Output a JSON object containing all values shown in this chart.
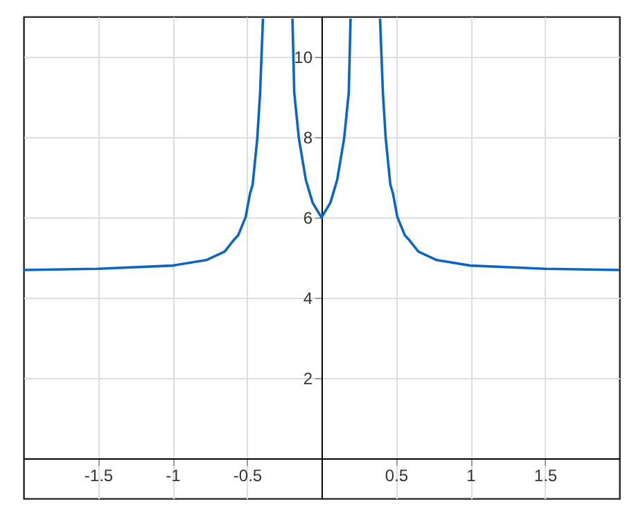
{
  "chart_data": {
    "type": "line",
    "x": [
      -2,
      -1.5,
      -1,
      -0.77,
      -0.65,
      -0.586,
      -0.56,
      -0.509,
      -0.48,
      -0.462,
      -0.431,
      -0.412,
      -0.393,
      -0.3,
      -0.195,
      -0.183,
      -0.152,
      -0.105,
      -0.059,
      0,
      0.059,
      0.105,
      0.152,
      0.183,
      0.195,
      0.3,
      0.393,
      0.412,
      0.431,
      0.462,
      0.48,
      0.509,
      0.56,
      0.586,
      0.65,
      0.77,
      1,
      1.5,
      2
    ],
    "series": [
      {
        "color": "#0a66c2",
        "values": [
          4.69,
          4.72,
          4.8,
          4.94,
          5.15,
          5.45,
          5.55,
          6.01,
          6.59,
          6.82,
          7.97,
          9.11,
          10.95,
          null,
          10.95,
          9.11,
          7.97,
          6.93,
          6.36,
          6.0,
          6.36,
          6.93,
          7.97,
          9.11,
          10.95,
          null,
          10.95,
          9.11,
          7.97,
          6.82,
          6.59,
          6.01,
          5.55,
          5.45,
          5.15,
          4.94,
          4.8,
          4.72,
          4.69
        ]
      }
    ],
    "xlim": [
      -2,
      2
    ],
    "ylim": [
      -1,
      11
    ],
    "xticks": [
      {
        "value": -1.5,
        "label": "-1.5"
      },
      {
        "value": -1,
        "label": "-1"
      },
      {
        "value": -0.5,
        "label": "-0.5"
      },
      {
        "value": 0.5,
        "label": "0.5"
      },
      {
        "value": 1,
        "label": "1"
      },
      {
        "value": 1.5,
        "label": "1.5"
      }
    ],
    "yticks": [
      2,
      4,
      6,
      8,
      10
    ],
    "grid": true,
    "marker": "none",
    "line_style": "solid"
  }
}
